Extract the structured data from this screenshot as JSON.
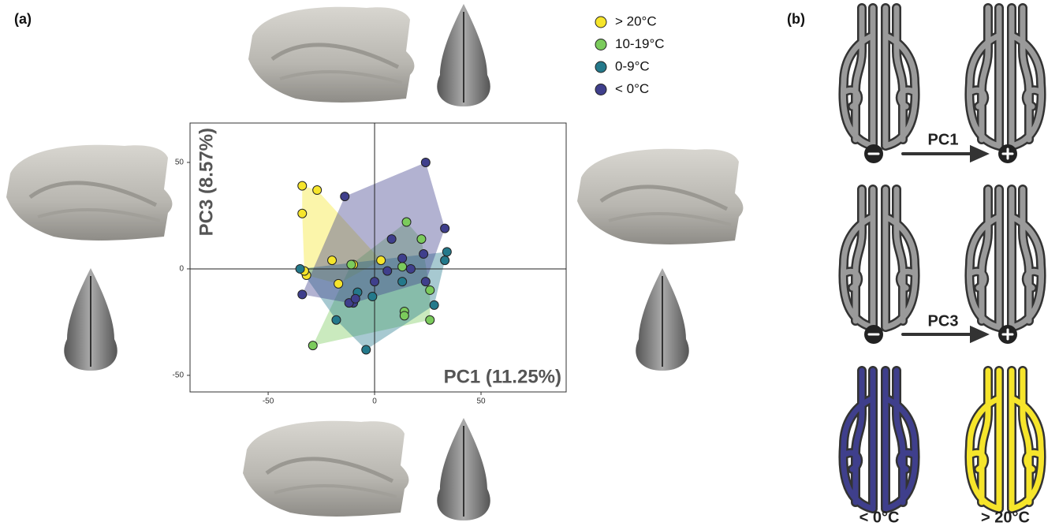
{
  "chart_data": {
    "type": "scatter",
    "xlabel": "PC1 (11.25%)",
    "ylabel": "PC3 (8.57%)",
    "xlim": [
      -86.7,
      90
    ],
    "ylim": [
      -57.8,
      68.5
    ],
    "xticks": [
      -50,
      0,
      50
    ],
    "yticks": [
      -50,
      0,
      50
    ],
    "series": [
      {
        "name": "> 20°C",
        "color": "#f6e52b",
        "x": [
          -34,
          -27,
          -34,
          -32,
          -33,
          -17,
          -20,
          -10,
          3
        ],
        "y": [
          39,
          37,
          26,
          -3,
          -1,
          -7,
          4,
          2,
          4
        ]
      },
      {
        "name": "10-19°C",
        "color": "#7bcb5c",
        "x": [
          15,
          22,
          -11,
          13,
          14,
          14,
          26,
          26,
          -29
        ],
        "y": [
          22,
          14,
          2,
          1,
          -20,
          -22,
          -10,
          -24,
          -36
        ]
      },
      {
        "name": "0-9°C",
        "color": "#24798b",
        "x": [
          -35,
          34,
          33,
          28,
          13,
          -8,
          -1,
          -18,
          -4
        ],
        "y": [
          0,
          8,
          4,
          -17,
          -6,
          -11,
          -13,
          -24,
          -38
        ]
      },
      {
        "name": "< 0°C",
        "color": "#3f3f8c",
        "x": [
          -14,
          24,
          33,
          8,
          23,
          0,
          6,
          17,
          24,
          -10,
          -12,
          -9,
          -34,
          13
        ],
        "y": [
          34,
          50,
          19,
          14,
          7,
          -6,
          -1,
          0,
          -6,
          -16,
          -16,
          -14,
          -12,
          5
        ]
      }
    ]
  },
  "panel_a": "(a)",
  "panel_b": {
    "label": "(b)",
    "arrow_1": "PC1",
    "arrow_2": "PC3",
    "cold": "< 0°C",
    "warm": "> 20°C"
  }
}
